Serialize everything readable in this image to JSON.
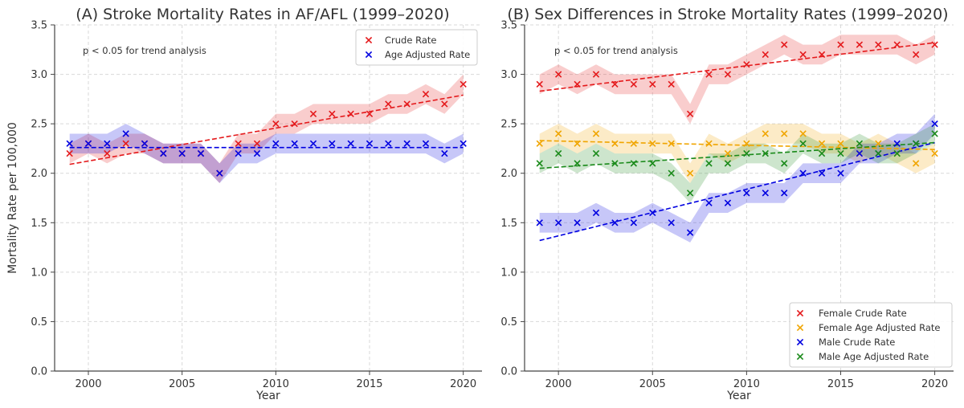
{
  "chart_data": [
    {
      "type": "scatter",
      "title": "(A) Stroke Mortality Rates in AF/AFL (1999–2020)",
      "xlabel": "Year",
      "ylabel": "Mortality Rate per 100,000",
      "xlim": [
        1998.2,
        2021
      ],
      "ylim": [
        0,
        3.5
      ],
      "xticks": [
        2000,
        2005,
        2010,
        2015,
        2020
      ],
      "yticks": [
        0.0,
        0.5,
        1.0,
        1.5,
        2.0,
        2.5,
        3.0,
        3.5
      ],
      "grid": true,
      "annotation": "p < 0.05 for trend analysis",
      "legend_position": "top-right",
      "x": [
        1999,
        2000,
        2001,
        2002,
        2003,
        2004,
        2005,
        2006,
        2007,
        2008,
        2009,
        2010,
        2011,
        2012,
        2013,
        2014,
        2015,
        2016,
        2017,
        2018,
        2019,
        2020
      ],
      "series": [
        {
          "name": "Crude Rate",
          "color": "#e41a1c",
          "values": [
            2.2,
            2.3,
            2.2,
            2.3,
            2.3,
            2.2,
            2.2,
            2.2,
            2.0,
            2.3,
            2.3,
            2.5,
            2.5,
            2.6,
            2.6,
            2.6,
            2.6,
            2.7,
            2.7,
            2.8,
            2.7,
            2.9
          ],
          "band": 0.1,
          "trend": [
            2.09,
            2.79
          ]
        },
        {
          "name": "Age Adjusted Rate",
          "color": "#0000e0",
          "values": [
            2.3,
            2.3,
            2.3,
            2.4,
            2.3,
            2.2,
            2.2,
            2.2,
            2.0,
            2.2,
            2.2,
            2.3,
            2.3,
            2.3,
            2.3,
            2.3,
            2.3,
            2.3,
            2.3,
            2.3,
            2.2,
            2.3
          ],
          "band": 0.1,
          "trend": [
            2.26,
            2.26
          ]
        }
      ]
    },
    {
      "type": "scatter",
      "title": "(B) Sex Differences in Stroke Mortality Rates (1999–2020)",
      "xlabel": "Year",
      "ylabel": "",
      "xlim": [
        1998.2,
        2021
      ],
      "ylim": [
        0,
        3.5
      ],
      "xticks": [
        2000,
        2005,
        2010,
        2015,
        2020
      ],
      "yticks": [
        0.0,
        0.5,
        1.0,
        1.5,
        2.0,
        2.5,
        3.0,
        3.5
      ],
      "grid": true,
      "annotation": "p < 0.05 for trend analysis",
      "legend_position": "bottom-right",
      "x": [
        1999,
        2000,
        2001,
        2002,
        2003,
        2004,
        2005,
        2006,
        2007,
        2008,
        2009,
        2010,
        2011,
        2012,
        2013,
        2014,
        2015,
        2016,
        2017,
        2018,
        2019,
        2020
      ],
      "series": [
        {
          "name": "Female Crude Rate",
          "color": "#e41a1c",
          "values": [
            2.9,
            3.0,
            2.9,
            3.0,
            2.9,
            2.9,
            2.9,
            2.9,
            2.6,
            3.0,
            3.0,
            3.1,
            3.2,
            3.3,
            3.2,
            3.2,
            3.3,
            3.3,
            3.3,
            3.3,
            3.2,
            3.3
          ],
          "band": 0.1,
          "trend": [
            2.83,
            3.32
          ]
        },
        {
          "name": "Female Age Adjusted Rate",
          "color": "#f0a500",
          "values": [
            2.3,
            2.4,
            2.3,
            2.4,
            2.3,
            2.3,
            2.3,
            2.3,
            2.0,
            2.3,
            2.2,
            2.3,
            2.4,
            2.4,
            2.4,
            2.3,
            2.3,
            2.2,
            2.3,
            2.2,
            2.1,
            2.2
          ],
          "band": 0.1,
          "trend": [
            2.33,
            2.24
          ]
        },
        {
          "name": "Male Crude Rate",
          "color": "#0000e0",
          "values": [
            1.5,
            1.5,
            1.5,
            1.6,
            1.5,
            1.5,
            1.6,
            1.5,
            1.4,
            1.7,
            1.7,
            1.8,
            1.8,
            1.8,
            2.0,
            2.0,
            2.0,
            2.2,
            2.2,
            2.3,
            2.3,
            2.5
          ],
          "band": 0.1,
          "trend": [
            1.32,
            2.31
          ]
        },
        {
          "name": "Male Age Adjusted Rate",
          "color": "#1a8a1a",
          "values": [
            2.1,
            2.2,
            2.1,
            2.2,
            2.1,
            2.1,
            2.1,
            2.0,
            1.8,
            2.1,
            2.1,
            2.2,
            2.2,
            2.1,
            2.3,
            2.2,
            2.2,
            2.3,
            2.2,
            2.2,
            2.3,
            2.4
          ],
          "band": 0.1,
          "trend": [
            2.05,
            2.31
          ]
        }
      ]
    }
  ]
}
